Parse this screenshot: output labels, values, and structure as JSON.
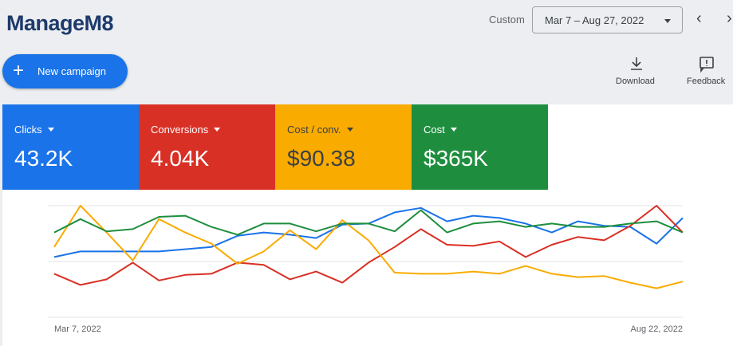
{
  "header": {
    "logo": "ManageM8",
    "range_label": "Custom",
    "date_range": "Mar 7 – Aug 27, 2022",
    "new_campaign": "New campaign",
    "download": "Download",
    "feedback": "Feedback"
  },
  "chart_data": {
    "type": "line",
    "categories": [
      "Mar 7, 2022",
      null,
      null,
      null,
      null,
      null,
      null,
      null,
      null,
      null,
      null,
      null,
      null,
      null,
      null,
      null,
      null,
      null,
      null,
      null,
      null,
      null,
      null,
      null,
      "Aug 22, 2022"
    ],
    "series": [
      {
        "name": "Clicks",
        "total": "43.2K",
        "color": "#1a73e8",
        "values": [
          54,
          59,
          59,
          59,
          59,
          61,
          63,
          73,
          76,
          74,
          71,
          83,
          84,
          94,
          98,
          86,
          91,
          89,
          84,
          76,
          86,
          82,
          81,
          66,
          89
        ]
      },
      {
        "name": "Conversions",
        "total": "4.04K",
        "color": "#d93025",
        "values": [
          39,
          29,
          34,
          49,
          33,
          38,
          39,
          49,
          47,
          34,
          41,
          31,
          49,
          63,
          79,
          65,
          64,
          68,
          54,
          65,
          72,
          69,
          82,
          100,
          76
        ]
      },
      {
        "name": "Cost / conv.",
        "total": "$90.38",
        "color": "#f9ab00",
        "values": [
          63,
          100,
          76,
          51,
          88,
          76,
          66,
          48,
          59,
          78,
          61,
          87,
          69,
          40,
          39,
          39,
          41,
          39,
          46,
          39,
          36,
          37,
          31,
          26,
          32
        ]
      },
      {
        "name": "Cost",
        "total": "$365K",
        "color": "#1e8e3e",
        "values": [
          76,
          88,
          77,
          79,
          90,
          91,
          81,
          74,
          84,
          84,
          77,
          84,
          84,
          77,
          96,
          76,
          84,
          86,
          81,
          84,
          81,
          81,
          84,
          86,
          76
        ]
      }
    ],
    "ylim": [
      0,
      100
    ],
    "yticks": [
      0,
      50,
      100
    ],
    "grid": true
  }
}
